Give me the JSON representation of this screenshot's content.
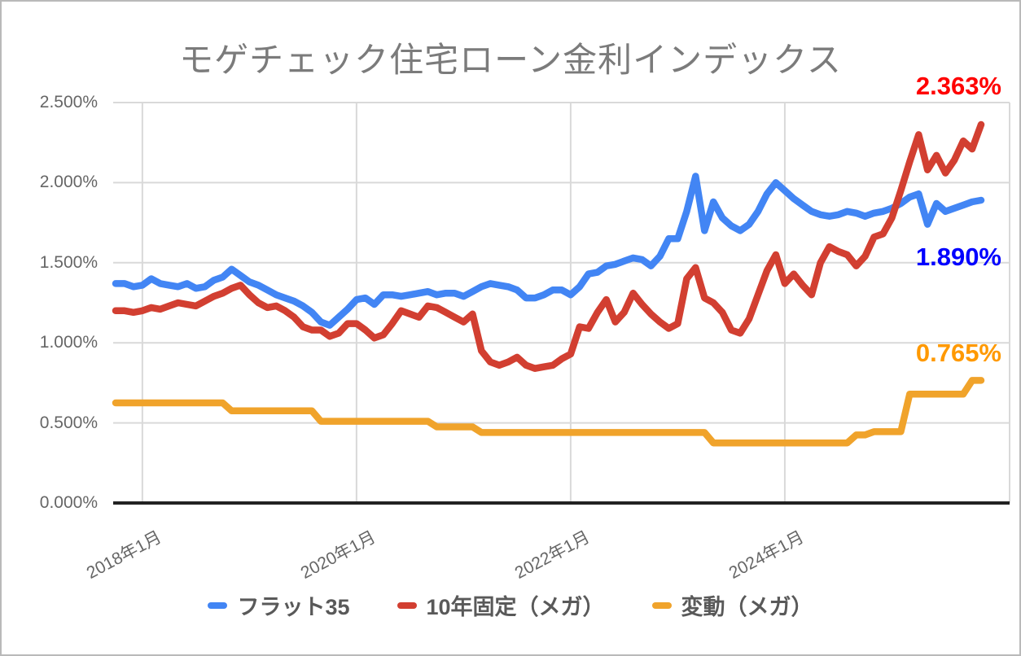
{
  "chart_data": {
    "type": "line",
    "title": "モゲチェック住宅ローン金利インデックス",
    "xlabel": "",
    "ylabel": "",
    "ylim": [
      0,
      2.5
    ],
    "grid": true,
    "legend_position": "bottom",
    "interval": "monthly",
    "x_start": "2017-10",
    "x_end": "2025-11",
    "y_ticks": [
      {
        "label": "2.500%",
        "value": 2.5
      },
      {
        "label": "2.000%",
        "value": 2.0
      },
      {
        "label": "1.500%",
        "value": 1.5
      },
      {
        "label": "1.000%",
        "value": 1.0
      },
      {
        "label": "0.500%",
        "value": 0.5
      },
      {
        "label": "0.000%",
        "value": 0.0
      }
    ],
    "x_ticks": [
      {
        "label": "2018年1月",
        "index": 3
      },
      {
        "label": "2020年1月",
        "index": 27
      },
      {
        "label": "2022年1月",
        "index": 51
      },
      {
        "label": "2024年1月",
        "index": 75
      }
    ],
    "series": [
      {
        "name": "フラット35",
        "color": "#4285f4",
        "end_label": "1.890%",
        "end_label_color": "#0000ff",
        "values": [
          1.37,
          1.37,
          1.35,
          1.36,
          1.4,
          1.37,
          1.36,
          1.35,
          1.37,
          1.34,
          1.35,
          1.39,
          1.41,
          1.46,
          1.42,
          1.38,
          1.36,
          1.33,
          1.3,
          1.28,
          1.26,
          1.23,
          1.19,
          1.13,
          1.11,
          1.16,
          1.21,
          1.27,
          1.28,
          1.24,
          1.3,
          1.3,
          1.29,
          1.3,
          1.31,
          1.32,
          1.3,
          1.31,
          1.31,
          1.29,
          1.32,
          1.35,
          1.37,
          1.36,
          1.35,
          1.33,
          1.28,
          1.28,
          1.3,
          1.33,
          1.33,
          1.3,
          1.35,
          1.43,
          1.44,
          1.48,
          1.49,
          1.51,
          1.53,
          1.52,
          1.48,
          1.54,
          1.65,
          1.65,
          1.82,
          2.04,
          1.7,
          1.88,
          1.78,
          1.73,
          1.7,
          1.74,
          1.82,
          1.93,
          2.0,
          1.95,
          1.9,
          1.86,
          1.82,
          1.8,
          1.79,
          1.8,
          1.82,
          1.81,
          1.79,
          1.81,
          1.82,
          1.84,
          1.87,
          1.91,
          1.93,
          1.74,
          1.87,
          1.82,
          1.84,
          1.86,
          1.88,
          1.89
        ]
      },
      {
        "name": "10年固定（メガ）",
        "color": "#d23f31",
        "end_label": "2.363%",
        "end_label_color": "#ff0000",
        "values": [
          1.2,
          1.2,
          1.19,
          1.2,
          1.22,
          1.21,
          1.23,
          1.25,
          1.24,
          1.23,
          1.26,
          1.29,
          1.31,
          1.34,
          1.36,
          1.3,
          1.25,
          1.22,
          1.23,
          1.2,
          1.16,
          1.1,
          1.08,
          1.08,
          1.04,
          1.06,
          1.12,
          1.12,
          1.08,
          1.03,
          1.05,
          1.12,
          1.2,
          1.18,
          1.16,
          1.23,
          1.22,
          1.19,
          1.16,
          1.13,
          1.18,
          0.95,
          0.88,
          0.86,
          0.88,
          0.91,
          0.86,
          0.84,
          0.85,
          0.86,
          0.9,
          0.93,
          1.1,
          1.09,
          1.19,
          1.27,
          1.13,
          1.19,
          1.31,
          1.24,
          1.18,
          1.13,
          1.09,
          1.12,
          1.4,
          1.47,
          1.28,
          1.25,
          1.19,
          1.08,
          1.06,
          1.15,
          1.3,
          1.45,
          1.55,
          1.37,
          1.43,
          1.36,
          1.3,
          1.5,
          1.6,
          1.57,
          1.55,
          1.48,
          1.54,
          1.66,
          1.68,
          1.78,
          1.95,
          2.13,
          2.3,
          2.08,
          2.17,
          2.06,
          2.14,
          2.26,
          2.21,
          2.363
        ]
      },
      {
        "name": "変動（メガ）",
        "color": "#f0a32b",
        "end_label": "0.765%",
        "end_label_color": "#ff9900",
        "values": [
          0.625,
          0.625,
          0.625,
          0.625,
          0.625,
          0.625,
          0.625,
          0.625,
          0.625,
          0.625,
          0.625,
          0.625,
          0.625,
          0.575,
          0.575,
          0.575,
          0.575,
          0.575,
          0.575,
          0.575,
          0.575,
          0.575,
          0.575,
          0.51,
          0.51,
          0.51,
          0.51,
          0.51,
          0.51,
          0.51,
          0.51,
          0.51,
          0.51,
          0.51,
          0.51,
          0.51,
          0.475,
          0.475,
          0.475,
          0.475,
          0.475,
          0.44,
          0.44,
          0.44,
          0.44,
          0.44,
          0.44,
          0.44,
          0.44,
          0.44,
          0.44,
          0.44,
          0.44,
          0.44,
          0.44,
          0.44,
          0.44,
          0.44,
          0.44,
          0.44,
          0.44,
          0.44,
          0.44,
          0.44,
          0.44,
          0.44,
          0.44,
          0.375,
          0.375,
          0.375,
          0.375,
          0.375,
          0.375,
          0.375,
          0.375,
          0.375,
          0.375,
          0.375,
          0.375,
          0.375,
          0.375,
          0.375,
          0.375,
          0.425,
          0.425,
          0.445,
          0.445,
          0.445,
          0.445,
          0.68,
          0.68,
          0.68,
          0.68,
          0.68,
          0.68,
          0.68,
          0.765,
          0.765
        ]
      }
    ],
    "colors": {
      "gridline": "#d9d9d9",
      "axis": "#222222",
      "title_text": "#7b7b7b",
      "axis_label_text": "#666666",
      "legend_text": "#595959"
    }
  }
}
